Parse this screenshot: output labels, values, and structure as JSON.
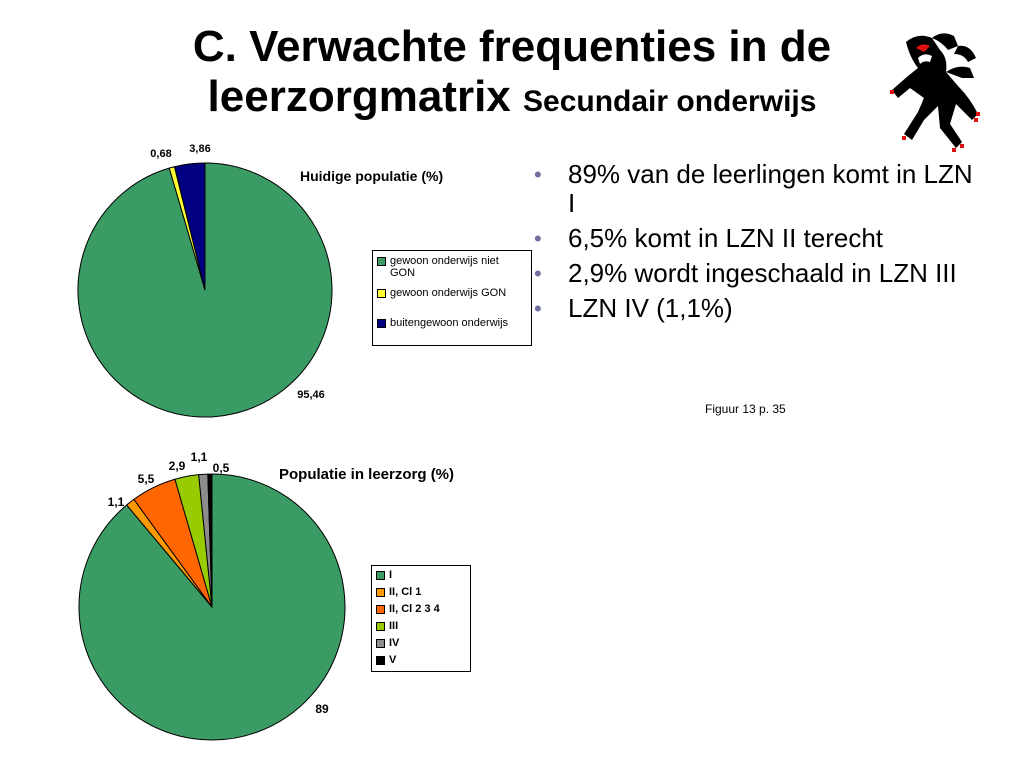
{
  "slide": {
    "title_main": "C. Verwachte frequenties in de leerzorgmatrix",
    "title_sub": "Secundair onderwijs",
    "bullets": [
      "89% van de leerlingen komt in LZN I",
      "6,5% komt in LZN II terecht",
      "2,9% wordt ingeschaald in LZN III",
      "LZN IV (1,1%)"
    ],
    "source": "Figuur 13 p. 35",
    "colors": {
      "bullet": "#6f6f9f",
      "outline": "#000000"
    },
    "logo_icon": "flemish-lion-icon"
  },
  "chart_data": [
    {
      "type": "pie",
      "title": "Huidige populatie (%)",
      "categories": [
        "gewoon onderwijs niet GON",
        "gewoon onderwijs GON",
        "buitengewoon onderwijs"
      ],
      "values": [
        95.46,
        0.68,
        3.86
      ],
      "data_labels": [
        "95,46",
        "0,68",
        "3,86"
      ],
      "colors": [
        "#3a9b65",
        "#ffff33",
        "#000080"
      ],
      "legend_lines": [
        [
          "gewoon onderwijs niet",
          "GON"
        ],
        [
          "gewoon onderwijs GON"
        ],
        [
          "buitengewoon onderwijs"
        ]
      ],
      "legend_position": "right"
    },
    {
      "type": "pie",
      "title": "Populatie in leerzorg (%)",
      "categories": [
        "I",
        "II, Cl 1",
        "II, Cl 2 3 4",
        "III",
        "IV",
        "V"
      ],
      "values": [
        89,
        1.1,
        5.5,
        2.9,
        1.1,
        0.5
      ],
      "data_labels": [
        "89",
        "1,1",
        "5,5",
        "2,9",
        "1,1",
        "0,5"
      ],
      "colors": [
        "#3a9b65",
        "#ff9900",
        "#ff6600",
        "#99cc00",
        "#8c8c8c",
        "#000000"
      ],
      "legend_lines": [
        [
          "I"
        ],
        [
          "II, Cl 1"
        ],
        [
          "II, Cl 2 3 4"
        ],
        [
          "III"
        ],
        [
          "IV"
        ],
        [
          "V"
        ]
      ],
      "legend_position": "right"
    }
  ]
}
